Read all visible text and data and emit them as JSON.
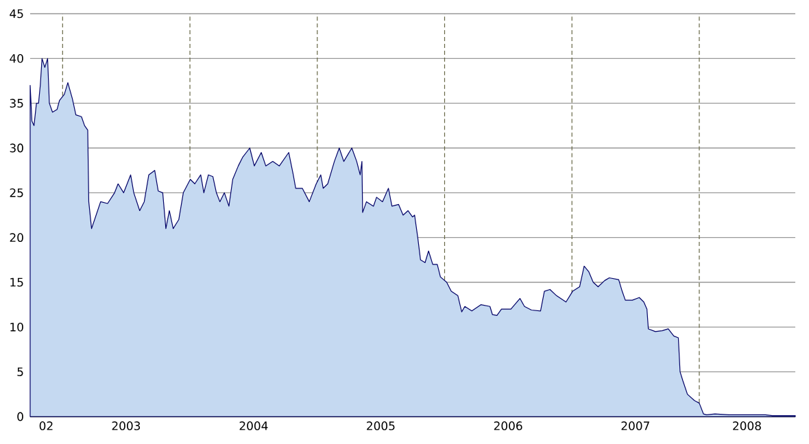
{
  "chart_data": {
    "type": "area",
    "x": [
      "2002-09-30",
      "2002-10-05",
      "2002-10-11",
      "2002-10-18",
      "2002-10-24",
      "2002-10-29",
      "2002-11-03",
      "2002-11-11",
      "2002-11-19",
      "2002-11-24",
      "2002-12-03",
      "2002-12-16",
      "2002-12-23",
      "2003-01-06",
      "2003-01-16",
      "2003-01-29",
      "2003-02-08",
      "2003-02-24",
      "2003-03-05",
      "2003-03-14",
      "2003-03-17",
      "2003-03-25",
      "2003-04-07",
      "2003-04-20",
      "2003-05-10",
      "2003-05-30",
      "2003-06-09",
      "2003-06-25",
      "2003-07-15",
      "2003-07-24",
      "2003-08-10",
      "2003-08-23",
      "2003-09-05",
      "2003-09-22",
      "2003-10-02",
      "2003-10-15",
      "2003-10-24",
      "2003-11-03",
      "2003-11-14",
      "2003-11-30",
      "2003-12-13",
      "2004-01-02",
      "2004-01-15",
      "2004-02-01",
      "2004-02-10",
      "2004-02-23",
      "2004-03-07",
      "2004-03-17",
      "2004-03-27",
      "2004-04-09",
      "2004-04-22",
      "2004-05-03",
      "2004-05-19",
      "2004-06-01",
      "2004-06-21",
      "2004-07-04",
      "2004-07-24",
      "2004-08-06",
      "2004-08-26",
      "2004-09-14",
      "2004-10-11",
      "2004-10-24",
      "2004-10-31",
      "2004-11-19",
      "2004-12-09",
      "2004-12-29",
      "2005-01-11",
      "2005-01-18",
      "2005-01-31",
      "2005-02-19",
      "2005-03-05",
      "2005-03-18",
      "2005-04-10",
      "2005-04-24",
      "2005-05-04",
      "2005-05-09",
      "2005-05-11",
      "2005-05-22",
      "2005-06-11",
      "2005-06-20",
      "2005-07-07",
      "2005-07-24",
      "2005-08-03",
      "2005-08-22",
      "2005-09-04",
      "2005-09-18",
      "2005-10-01",
      "2005-10-07",
      "2005-10-16",
      "2005-10-24",
      "2005-11-06",
      "2005-11-16",
      "2005-11-28",
      "2005-12-11",
      "2005-12-20",
      "2006-01-07",
      "2006-01-20",
      "2006-02-08",
      "2006-02-19",
      "2006-02-28",
      "2006-03-20",
      "2006-04-15",
      "2006-05-11",
      "2006-05-18",
      "2006-05-31",
      "2006-06-13",
      "2006-07-10",
      "2006-08-05",
      "2006-08-18",
      "2006-09-07",
      "2006-10-03",
      "2006-10-14",
      "2006-10-30",
      "2006-11-18",
      "2006-12-15",
      "2007-01-03",
      "2007-01-23",
      "2007-02-05",
      "2007-02-18",
      "2007-03-03",
      "2007-03-17",
      "2007-04-05",
      "2007-04-18",
      "2007-05-15",
      "2007-05-25",
      "2007-06-03",
      "2007-06-23",
      "2007-07-13",
      "2007-07-26",
      "2007-08-04",
      "2007-08-08",
      "2007-08-28",
      "2007-09-17",
      "2007-10-04",
      "2007-10-20",
      "2007-11-02",
      "2007-11-07",
      "2007-11-15",
      "2007-11-28",
      "2007-12-18",
      "2008-01-01",
      "2008-01-13",
      "2008-01-22",
      "2008-02-15",
      "2008-03-26",
      "2008-07-09",
      "2008-07-29",
      "2008-10-03"
    ],
    "values": [
      37,
      33,
      32.5,
      35,
      35,
      37,
      40,
      39,
      40,
      35,
      34,
      34.3,
      35.3,
      36,
      37.3,
      35.5,
      33.7,
      33.5,
      32.5,
      32,
      24,
      21,
      22.5,
      24,
      23.8,
      25,
      26,
      25,
      27,
      25,
      23,
      24,
      27,
      27.5,
      25.2,
      25,
      21,
      23,
      21,
      22,
      25,
      26.5,
      26,
      27,
      25,
      27,
      26.8,
      25,
      24,
      25,
      23.5,
      26.5,
      28,
      29,
      30,
      28,
      29.5,
      28,
      28.5,
      28,
      29.5,
      27,
      25.5,
      25.5,
      24,
      26,
      27,
      25.5,
      26,
      28.5,
      30,
      28.5,
      30,
      28.5,
      27,
      28.5,
      22.8,
      24,
      23.5,
      24.5,
      24,
      25.5,
      23.5,
      23.7,
      22.5,
      23,
      22.3,
      22.5,
      20,
      17.5,
      17.2,
      18.5,
      17,
      17,
      15.6,
      15,
      14,
      13.5,
      11.7,
      12.3,
      11.8,
      12.5,
      12.3,
      11.4,
      11.3,
      12,
      12,
      13.2,
      12.3,
      11.9,
      11.8,
      14,
      14.2,
      13.5,
      12.8,
      14,
      14.5,
      16.8,
      16.2,
      15,
      14.5,
      15.2,
      15.5,
      15.3,
      14,
      13,
      13,
      13.3,
      12.8,
      12,
      9.8,
      9.5,
      9.6,
      9.8,
      9,
      8.8,
      5,
      4,
      2.5,
      1.8,
      1.5,
      0.3,
      0.2,
      0.3,
      0.2,
      0.2,
      0.1,
      0.1
    ],
    "color": "#c5d9f1",
    "xlim": [
      "2002-09-30",
      "2008-10-03"
    ],
    "xticks": [
      {
        "value": "2002-11-15",
        "label": "02"
      },
      {
        "value": "2003-01-01",
        "label": null
      },
      {
        "value": "2003-07-02",
        "label": "2003"
      },
      {
        "value": "2004-01-01",
        "label": null
      },
      {
        "value": "2004-07-02",
        "label": "2004"
      },
      {
        "value": "2005-01-01",
        "label": null
      },
      {
        "value": "2005-07-02",
        "label": "2005"
      },
      {
        "value": "2006-01-01",
        "label": null
      },
      {
        "value": "2006-07-02",
        "label": "2006"
      },
      {
        "value": "2007-01-01",
        "label": null
      },
      {
        "value": "2007-07-02",
        "label": "2007"
      },
      {
        "value": "2008-01-01",
        "label": null
      },
      {
        "value": "2008-05-17",
        "label": "2008"
      }
    ],
    "ylim": [
      0,
      45
    ],
    "yticks": [
      0,
      5,
      10,
      15,
      20,
      25,
      30,
      35,
      40,
      45
    ],
    "grid": "y",
    "ref_lines": [
      {
        "axis": "x",
        "value": "2003-01-01",
        "color": "#666644",
        "line_style": "dashed"
      },
      {
        "axis": "x",
        "value": "2004-01-01",
        "color": "#666644",
        "line_style": "dashed"
      },
      {
        "axis": "x",
        "value": "2005-01-01",
        "color": "#666644",
        "line_style": "dashed"
      },
      {
        "axis": "x",
        "value": "2006-01-01",
        "color": "#666644",
        "line_style": "dashed"
      },
      {
        "axis": "x",
        "value": "2007-01-01",
        "color": "#666644",
        "line_style": "dashed"
      },
      {
        "axis": "x",
        "value": "2008-01-01",
        "color": "#666644",
        "line_style": "dashed"
      }
    ]
  }
}
